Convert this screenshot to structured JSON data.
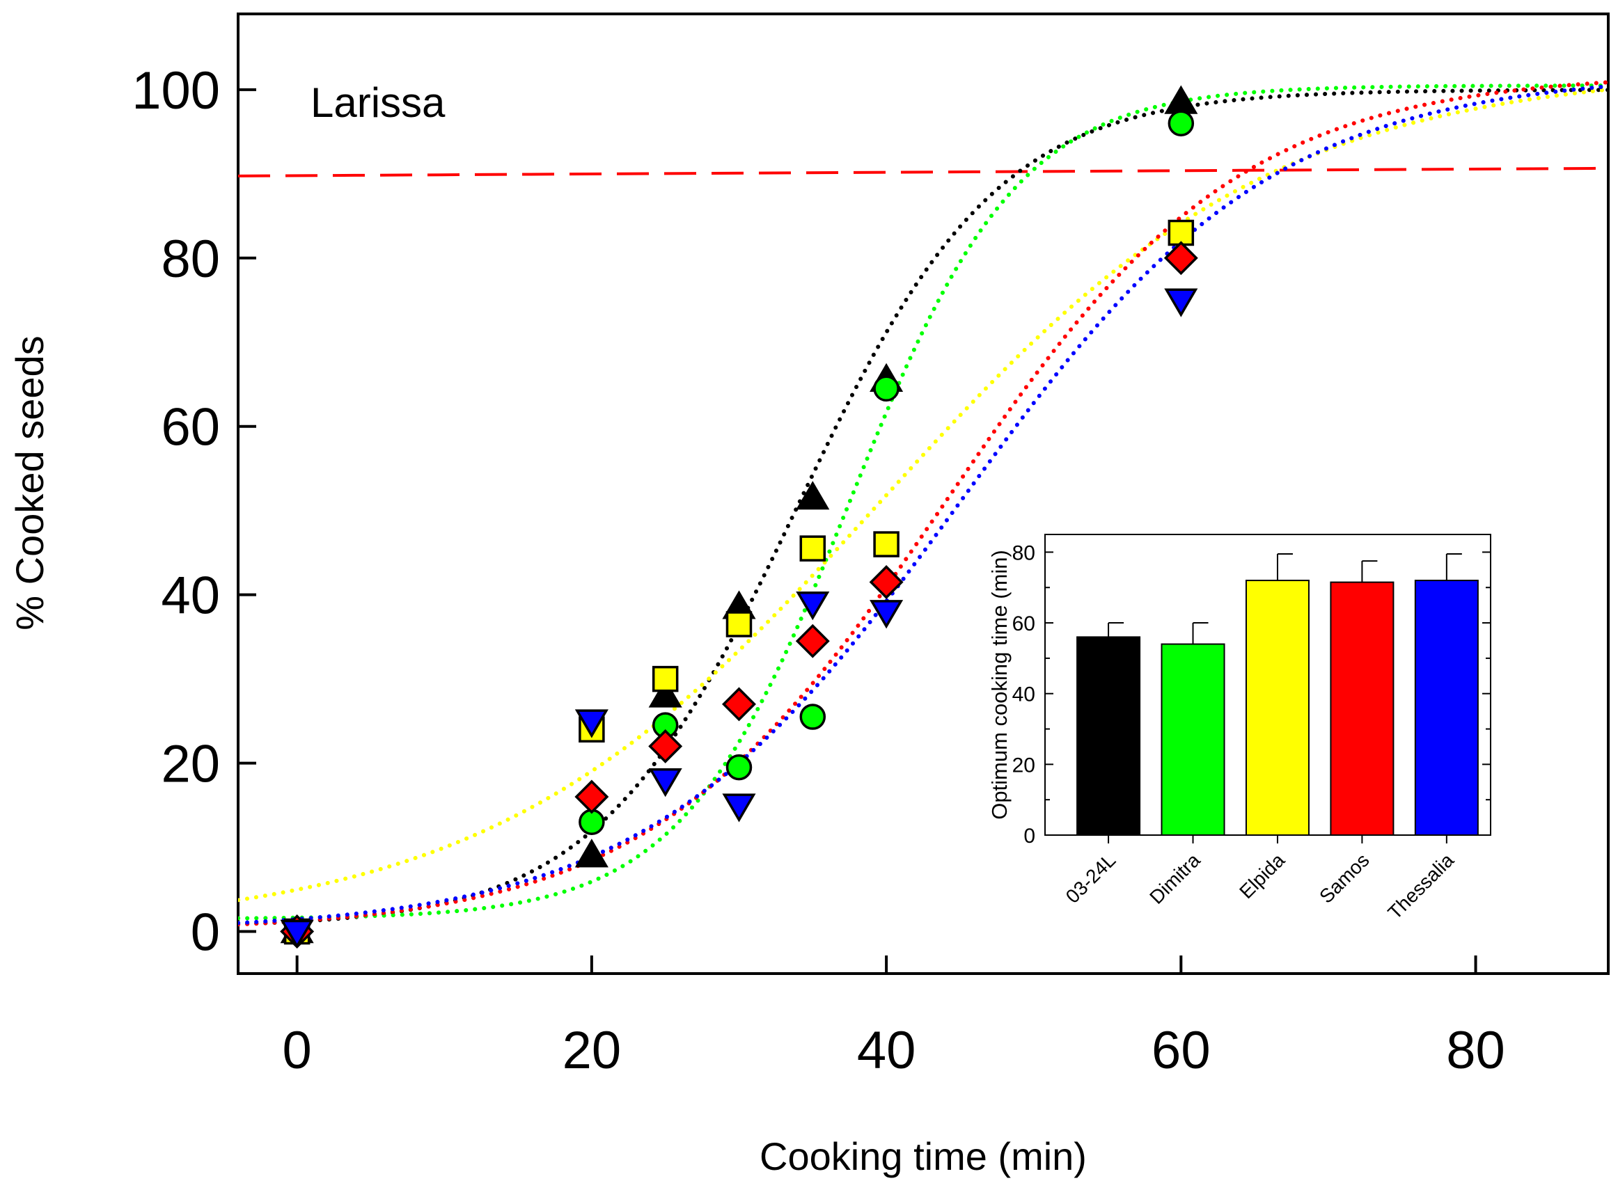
{
  "chart_data": [
    {
      "type": "scatter",
      "title": "",
      "annotation": "Larissa",
      "xlabel": "Cooking time (min)",
      "ylabel": "% Cooked seeds",
      "xlim": [
        -4,
        89
      ],
      "ylim": [
        -5,
        109
      ],
      "x_ticks": [
        0,
        20,
        40,
        60,
        80
      ],
      "y_ticks": [
        0,
        20,
        40,
        60,
        80,
        100
      ],
      "grid": false,
      "reference_line": {
        "y": 90,
        "color": "#ff0000",
        "style": "dashed"
      },
      "series": [
        {
          "color": "#000000",
          "marker": "triangle-up",
          "x": [
            0,
            20,
            25,
            30,
            35,
            40,
            60
          ],
          "y": [
            0,
            9,
            28,
            38.5,
            51.5,
            65.5,
            98.5
          ],
          "fit": {
            "x50": 33.9,
            "k": 0.147,
            "min": 0.5,
            "max": 100
          }
        },
        {
          "color": "#00ff00",
          "marker": "circle",
          "x": [
            0,
            20,
            25,
            30,
            35,
            40,
            60
          ],
          "y": [
            0,
            13,
            24.5,
            19.5,
            25.5,
            64.5,
            96
          ],
          "fit": {
            "x50": 37.5,
            "k": 0.175,
            "min": 1.5,
            "max": 100.5
          }
        },
        {
          "color": "#ffff00",
          "marker": "square",
          "x": [
            0,
            20,
            25,
            30,
            35,
            40,
            60
          ],
          "y": [
            0,
            24,
            30,
            36.5,
            45.5,
            46,
            83
          ],
          "fit": {
            "x50": 39.7,
            "k": 0.075,
            "min": 0,
            "max": 102.5
          }
        },
        {
          "color": "#ff0000",
          "marker": "diamond",
          "x": [
            0,
            20,
            25,
            30,
            35,
            40,
            60
          ],
          "y": [
            0,
            16,
            22,
            27,
            34.5,
            41.5,
            80
          ],
          "fit": {
            "x50": 44,
            "k": 0.1,
            "min": 0,
            "max": 102
          }
        },
        {
          "color": "#0000ff",
          "marker": "triangle-down",
          "x": [
            0,
            20,
            25,
            30,
            35,
            40,
            60
          ],
          "y": [
            0,
            25,
            18,
            15,
            39,
            38,
            75
          ],
          "fit": {
            "x50": 45,
            "k": 0.094,
            "min": 0,
            "max": 102
          }
        }
      ]
    },
    {
      "type": "bar",
      "title": "",
      "xlabel": "",
      "ylabel": "Optimum cooking time (min)",
      "ylim": [
        0,
        85
      ],
      "y_ticks": [
        0,
        20,
        40,
        60,
        80
      ],
      "categories": [
        "03-24L",
        "Dimitra",
        "Elpida",
        "Samos",
        "Thessalia"
      ],
      "values": [
        56,
        54,
        72,
        71.5,
        72
      ],
      "errors": [
        4,
        6,
        7.5,
        6,
        7.5
      ],
      "colors": [
        "#000000",
        "#00ff00",
        "#ffff00",
        "#ff0000",
        "#0000ff"
      ]
    }
  ]
}
